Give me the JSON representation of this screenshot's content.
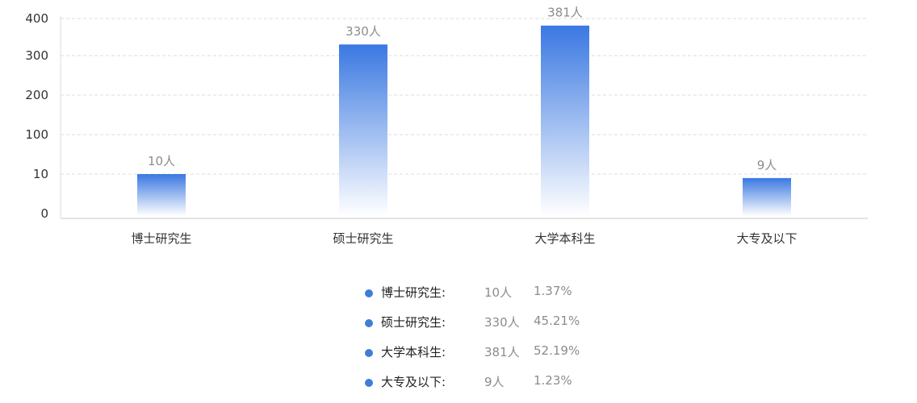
{
  "chart_data": {
    "type": "bar",
    "categories": [
      "博士研究生",
      "硕士研究生",
      "大学本科生",
      "大专及以下"
    ],
    "values": [
      10,
      330,
      381,
      9
    ],
    "data_labels": [
      "10人",
      "330人",
      "381人",
      "9人"
    ],
    "y_ticks": [
      "0",
      "10",
      "100",
      "200",
      "300",
      "400"
    ],
    "y_scale": "nonuniform",
    "grid": true,
    "bar_gradient": {
      "top": "#3a78e2",
      "bottom": "#ffffff"
    }
  },
  "legend": {
    "items": [
      {
        "name": "博士研究生:",
        "count": "10人",
        "percent": "1.37%"
      },
      {
        "name": "硕士研究生:",
        "count": "330人",
        "percent": "45.21%"
      },
      {
        "name": "大学本科生:",
        "count": "381人",
        "percent": "52.19%"
      },
      {
        "name": "大专及以下:",
        "count": "9人",
        "percent": "1.23%"
      }
    ],
    "dot_color": "#3f7ed6"
  }
}
